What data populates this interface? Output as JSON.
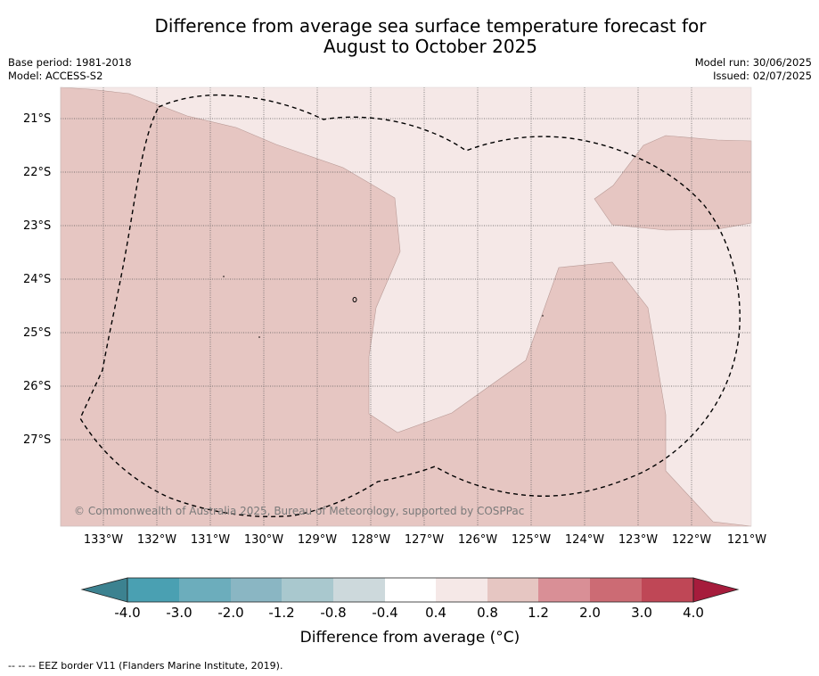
{
  "title": {
    "line1": "Difference from average sea surface temperature forecast for",
    "line2": "August to October 2025"
  },
  "meta": {
    "base_period": "Base period: 1981-2018",
    "model": "Model: ACCESS-S2",
    "model_run": "Model run: 30/06/2025",
    "issued": "Issued: 02/07/2025"
  },
  "map": {
    "latitude_labels": [
      "21°S",
      "22°S",
      "23°S",
      "24°S",
      "25°S",
      "26°S",
      "27°S"
    ],
    "longitude_labels": [
      "133°W",
      "132°W",
      "131°W",
      "130°W",
      "129°W",
      "128°W",
      "127°W",
      "126°W",
      "125°W",
      "124°W",
      "123°W",
      "122°W",
      "121°W"
    ],
    "copyright": "© Commonwealth of Australia 2025, Bureau of Meteorology, supported by COSPPac",
    "colors": {
      "anomaly_0_4_to_0_8": "#f5e8e7",
      "anomaly_0_8_to_1_2": "#e6c6c2",
      "contour_line": "#b89a96",
      "eez_border": "#000000",
      "grid": "#555555"
    }
  },
  "colorbar": {
    "title": "Difference from average (°C)",
    "tick_labels": [
      "-4.0",
      "-3.0",
      "-2.0",
      "-1.2",
      "-0.8",
      "-0.4",
      "0.4",
      "0.8",
      "1.2",
      "2.0",
      "3.0",
      "4.0"
    ],
    "colors": [
      "#3c8290",
      "#4aa0b2",
      "#6cadbc",
      "#8ab6c3",
      "#a9c8ce",
      "#cdd9dc",
      "#ffffff",
      "#f5e8e7",
      "#e6c6c2",
      "#d98f96",
      "#cc6b74",
      "#bf4756",
      "#a61c3c"
    ]
  },
  "footnote": "-- -- -- EEZ border V11 (Flanders Marine Institute, 2019)."
}
